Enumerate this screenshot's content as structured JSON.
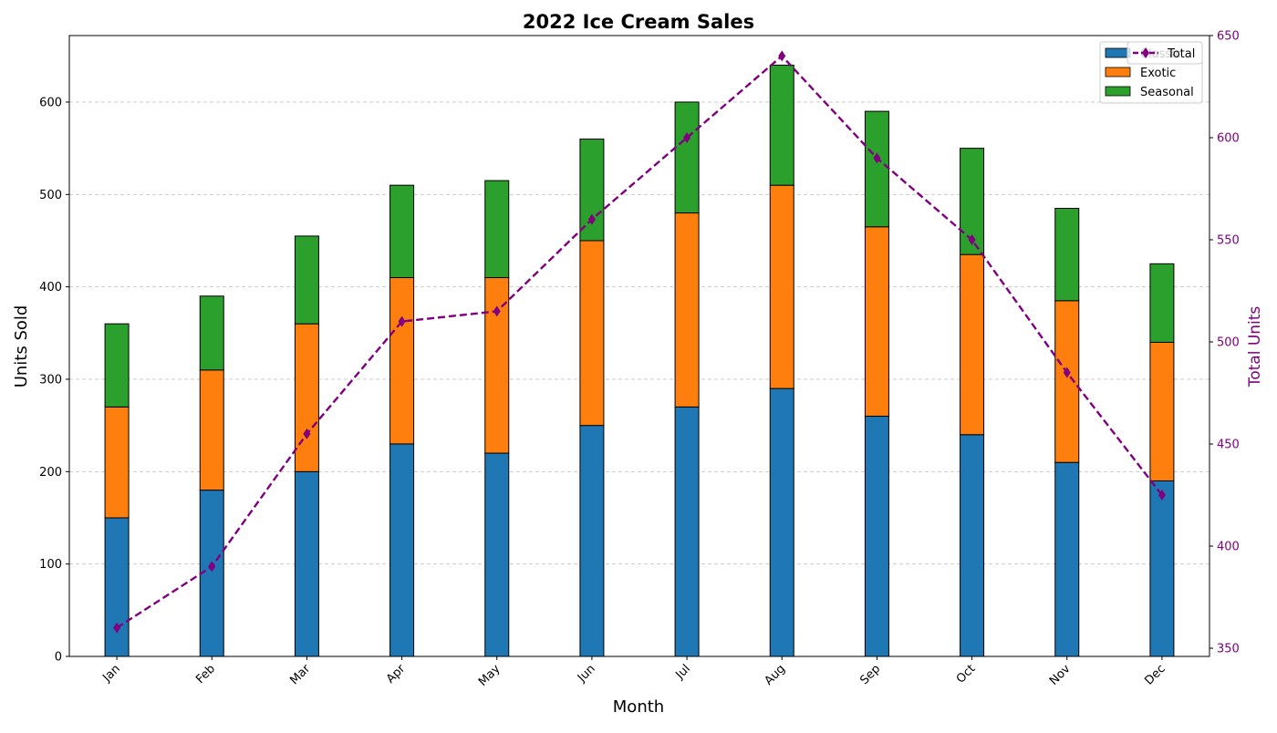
{
  "chart_data": {
    "type": "bar",
    "subtype": "stacked-bar-with-line-secondary-axis",
    "title": "2022 Ice Cream Sales",
    "xlabel": "Month",
    "ylabel": "Units Sold",
    "y2label": "Total Units",
    "categories": [
      "Jan",
      "Feb",
      "Mar",
      "Apr",
      "May",
      "Jun",
      "Jul",
      "Aug",
      "Sep",
      "Oct",
      "Nov",
      "Dec"
    ],
    "series": [
      {
        "name": "Classic",
        "kind": "bar",
        "axis": "left",
        "color": "#1f77b4",
        "values": [
          150,
          180,
          200,
          230,
          220,
          250,
          270,
          290,
          260,
          240,
          210,
          190
        ]
      },
      {
        "name": "Exotic",
        "kind": "bar",
        "axis": "left",
        "color": "#ff7f0e",
        "values": [
          120,
          130,
          160,
          180,
          190,
          200,
          210,
          220,
          205,
          195,
          175,
          150
        ]
      },
      {
        "name": "Seasonal",
        "kind": "bar",
        "axis": "left",
        "color": "#2ca02c",
        "values": [
          90,
          80,
          95,
          100,
          105,
          110,
          120,
          130,
          125,
          115,
          100,
          85
        ]
      },
      {
        "name": "Total",
        "kind": "line",
        "axis": "right",
        "color": "#800080",
        "marker": "diamond",
        "linestyle": "dashed",
        "values": [
          360,
          390,
          455,
          510,
          515,
          560,
          600,
          640,
          590,
          550,
          485,
          425
        ]
      }
    ],
    "ylim": [
      0,
      672
    ],
    "yticks": [
      0,
      100,
      200,
      300,
      400,
      500,
      600
    ],
    "y2lim": [
      346,
      650
    ],
    "y2ticks": [
      350,
      400,
      450,
      500,
      550,
      600,
      650
    ],
    "grid": "y-dashed",
    "legend_bars": {
      "placement": "top-right",
      "entries": [
        "Classic",
        "Exotic",
        "Seasonal"
      ]
    },
    "legend_line": {
      "placement": "top-right",
      "entries": [
        "Total"
      ]
    },
    "tick_label_color_right": "#800080"
  }
}
